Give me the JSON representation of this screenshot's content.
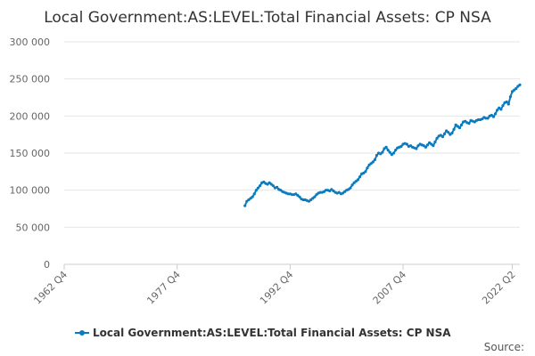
{
  "chart_data": {
    "type": "line",
    "title": "Local Government:AS:LEVEL:Total Financial Assets: CP NSA",
    "xlabel": "",
    "ylabel": "",
    "ylim": [
      0,
      300000
    ],
    "y_ticks": [
      {
        "value": 0,
        "label": "0"
      },
      {
        "value": 50000,
        "label": "50 000"
      },
      {
        "value": 100000,
        "label": "100 000"
      },
      {
        "value": 150000,
        "label": "150 000"
      },
      {
        "value": 200000,
        "label": "200 000"
      },
      {
        "value": 250000,
        "label": "250 000"
      },
      {
        "value": 300000,
        "label": "300 000"
      }
    ],
    "x_range": [
      1962.75,
      2022.25
    ],
    "x_ticks": [
      {
        "value": 1962.75,
        "label": "1962 Q4"
      },
      {
        "value": 1977.75,
        "label": "1977 Q4"
      },
      {
        "value": 1992.75,
        "label": "1992 Q4"
      },
      {
        "value": 2007.75,
        "label": "2007 Q4"
      },
      {
        "value": 2022.25,
        "label": "2022 Q2"
      }
    ],
    "grid": true,
    "legend_position": "bottom",
    "series": [
      {
        "name": "Local Government:AS:LEVEL:Total Financial Assets: CP NSA",
        "color": "#0a7bbf",
        "points": [
          [
            1986.75,
            79000
          ],
          [
            1987.0,
            85000
          ],
          [
            1987.25,
            87000
          ],
          [
            1987.5,
            89000
          ],
          [
            1987.75,
            91000
          ],
          [
            1988.0,
            95000
          ],
          [
            1988.25,
            100000
          ],
          [
            1988.5,
            103000
          ],
          [
            1988.75,
            106000
          ],
          [
            1989.0,
            110000
          ],
          [
            1989.25,
            111000
          ],
          [
            1989.5,
            109000
          ],
          [
            1989.75,
            108000
          ],
          [
            1990.0,
            110000
          ],
          [
            1990.25,
            108000
          ],
          [
            1990.5,
            106000
          ],
          [
            1990.75,
            103000
          ],
          [
            1991.0,
            104000
          ],
          [
            1991.25,
            101000
          ],
          [
            1991.5,
            100000
          ],
          [
            1991.75,
            98000
          ],
          [
            1992.0,
            97000
          ],
          [
            1992.25,
            96000
          ],
          [
            1992.5,
            95000
          ],
          [
            1992.75,
            95000
          ],
          [
            1993.0,
            94000
          ],
          [
            1993.25,
            94000
          ],
          [
            1993.5,
            95000
          ],
          [
            1993.75,
            93000
          ],
          [
            1994.0,
            91000
          ],
          [
            1994.25,
            88000
          ],
          [
            1994.5,
            87000
          ],
          [
            1994.75,
            87000
          ],
          [
            1995.0,
            86000
          ],
          [
            1995.25,
            85000
          ],
          [
            1995.5,
            87000
          ],
          [
            1995.75,
            89000
          ],
          [
            1996.0,
            91000
          ],
          [
            1996.25,
            94000
          ],
          [
            1996.5,
            96000
          ],
          [
            1996.75,
            97000
          ],
          [
            1997.0,
            97000
          ],
          [
            1997.25,
            98000
          ],
          [
            1997.5,
            100000
          ],
          [
            1997.75,
            100000
          ],
          [
            1998.0,
            99000
          ],
          [
            1998.25,
            101000
          ],
          [
            1998.5,
            99000
          ],
          [
            1998.75,
            97000
          ],
          [
            1999.0,
            96000
          ],
          [
            1999.25,
            97000
          ],
          [
            1999.5,
            95000
          ],
          [
            1999.75,
            96000
          ],
          [
            2000.0,
            98000
          ],
          [
            2000.25,
            100000
          ],
          [
            2000.5,
            101000
          ],
          [
            2000.75,
            103000
          ],
          [
            2001.0,
            107000
          ],
          [
            2001.25,
            110000
          ],
          [
            2001.5,
            112000
          ],
          [
            2001.75,
            114000
          ],
          [
            2002.0,
            118000
          ],
          [
            2002.25,
            122000
          ],
          [
            2002.5,
            123000
          ],
          [
            2002.75,
            125000
          ],
          [
            2003.0,
            130000
          ],
          [
            2003.25,
            134000
          ],
          [
            2003.5,
            136000
          ],
          [
            2003.75,
            138000
          ],
          [
            2004.0,
            141000
          ],
          [
            2004.25,
            147000
          ],
          [
            2004.5,
            150000
          ],
          [
            2004.75,
            149000
          ],
          [
            2005.0,
            151000
          ],
          [
            2005.25,
            156000
          ],
          [
            2005.5,
            158000
          ],
          [
            2005.75,
            154000
          ],
          [
            2006.0,
            151000
          ],
          [
            2006.25,
            148000
          ],
          [
            2006.5,
            150000
          ],
          [
            2006.75,
            154000
          ],
          [
            2007.0,
            157000
          ],
          [
            2007.25,
            158000
          ],
          [
            2007.5,
            159000
          ],
          [
            2007.75,
            162000
          ],
          [
            2008.0,
            163000
          ],
          [
            2008.25,
            162000
          ],
          [
            2008.5,
            159000
          ],
          [
            2008.75,
            160000
          ],
          [
            2009.0,
            158000
          ],
          [
            2009.25,
            157000
          ],
          [
            2009.5,
            156000
          ],
          [
            2009.75,
            160000
          ],
          [
            2010.0,
            162000
          ],
          [
            2010.25,
            161000
          ],
          [
            2010.5,
            160000
          ],
          [
            2010.75,
            158000
          ],
          [
            2011.0,
            161000
          ],
          [
            2011.25,
            164000
          ],
          [
            2011.5,
            162000
          ],
          [
            2011.75,
            160000
          ],
          [
            2012.0,
            165000
          ],
          [
            2012.25,
            170000
          ],
          [
            2012.5,
            173000
          ],
          [
            2012.75,
            174000
          ],
          [
            2013.0,
            172000
          ],
          [
            2013.25,
            176000
          ],
          [
            2013.5,
            180000
          ],
          [
            2013.75,
            178000
          ],
          [
            2014.0,
            175000
          ],
          [
            2014.25,
            177000
          ],
          [
            2014.5,
            182000
          ],
          [
            2014.75,
            188000
          ],
          [
            2015.0,
            186000
          ],
          [
            2015.25,
            184000
          ],
          [
            2015.5,
            188000
          ],
          [
            2015.75,
            192000
          ],
          [
            2016.0,
            193000
          ],
          [
            2016.25,
            191000
          ],
          [
            2016.5,
            190000
          ],
          [
            2016.75,
            194000
          ],
          [
            2017.0,
            193000
          ],
          [
            2017.25,
            192000
          ],
          [
            2017.5,
            194000
          ],
          [
            2017.75,
            195000
          ],
          [
            2018.0,
            195000
          ],
          [
            2018.25,
            196000
          ],
          [
            2018.5,
            198000
          ],
          [
            2018.75,
            197000
          ],
          [
            2019.0,
            197000
          ],
          [
            2019.25,
            200000
          ],
          [
            2019.5,
            201000
          ],
          [
            2019.75,
            199000
          ],
          [
            2020.0,
            203000
          ],
          [
            2020.25,
            208000
          ],
          [
            2020.5,
            211000
          ],
          [
            2020.75,
            209000
          ],
          [
            2021.0,
            214000
          ],
          [
            2021.25,
            218000
          ],
          [
            2021.5,
            219000
          ],
          [
            2021.75,
            216000
          ],
          [
            2022.0,
            226000
          ],
          [
            2022.25,
            233000
          ],
          [
            2022.5,
            235000
          ],
          [
            2022.75,
            237000
          ],
          [
            2023.0,
            240000
          ],
          [
            2023.25,
            242000
          ]
        ]
      }
    ],
    "source_label": "Source:"
  }
}
